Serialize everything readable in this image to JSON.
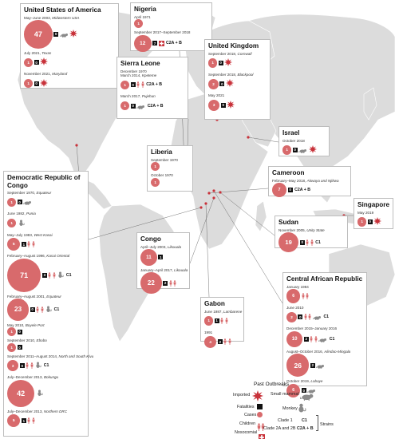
{
  "colors": {
    "case": "#d86a6c",
    "fatal": "#111111",
    "land": "#dcdcdc",
    "imported": "#c8323a",
    "nosocomial": "#c8323a"
  },
  "panels": {
    "usa": {
      "title": "United States of America",
      "entries": [
        {
          "period": "May–June 2003,",
          "location": "Midwestern USA",
          "cases": "47",
          "deaths": "0",
          "icons": [
            "mammal-icon",
            "imported-icon"
          ],
          "strain": ""
        },
        {
          "period": "July 2021,",
          "location": "Texas",
          "cases": "1",
          "deaths": "0",
          "icons": [
            "imported-icon"
          ],
          "strain": ""
        },
        {
          "period": "November 2021,",
          "location": "Maryland",
          "cases": "1",
          "deaths": "0",
          "icons": [
            "imported-icon"
          ],
          "strain": ""
        }
      ]
    },
    "nigeria": {
      "title": "Nigeria",
      "entries": [
        {
          "period": "April 1971",
          "location": "",
          "cases": "1",
          "deaths": "",
          "icons": [],
          "strain": ""
        },
        {
          "period": "September 2017–September 2018",
          "location": "",
          "cases": "12",
          "deaths": "7",
          "icons": [
            "nosocomial-icon"
          ],
          "strain": "C2A + B"
        }
      ]
    },
    "sierra_leone": {
      "title": "Sierra Leone",
      "entries": [
        {
          "period": "December 1970",
          "location": "",
          "cases": "",
          "deaths": "",
          "icons": [],
          "strain": ""
        },
        {
          "period": "March 2014,",
          "location": "Kpeteme",
          "cases": "1",
          "deaths": "0",
          "icons": [
            "child-icon",
            "child-icon"
          ],
          "strain": "C2A + B"
        },
        {
          "period": "March 2017,",
          "location": "Pujehun",
          "cases": "1",
          "deaths": "0",
          "icons": [
            "mammal-icon"
          ],
          "strain": "C2A + B"
        }
      ]
    },
    "uk": {
      "title": "United Kingdom",
      "entries": [
        {
          "period": "September 2018,",
          "location": "Cornwall",
          "cases": "1",
          "deaths": "0",
          "icons": [
            "imported-icon"
          ],
          "strain": ""
        },
        {
          "period": "September 2018,",
          "location": "Blackpool",
          "cases": "2",
          "deaths": "0",
          "icons": [
            "imported-icon"
          ],
          "strain": ""
        },
        {
          "period": "May 2021",
          "location": "",
          "cases": "3",
          "deaths": "0",
          "icons": [
            "imported-icon"
          ],
          "strain": ""
        }
      ]
    },
    "israel": {
      "title": "Israel",
      "entries": [
        {
          "period": "October 2018",
          "location": "",
          "cases": "1",
          "deaths": "0",
          "icons": [
            "mammal-icon",
            "imported-icon"
          ],
          "strain": ""
        }
      ]
    },
    "liberia": {
      "title": "Liberia",
      "entries": [
        {
          "period": "September 1970",
          "location": "",
          "cases": "1",
          "deaths": "",
          "icons": [],
          "strain": ""
        },
        {
          "period": "October 1970",
          "location": "",
          "cases": "1",
          "deaths": "",
          "icons": [],
          "strain": ""
        }
      ]
    },
    "cameroon": {
      "title": "Cameroon",
      "entries": [
        {
          "period": "February–May 2018,",
          "location": "Akwaya and Njikwa",
          "cases": "7",
          "deaths": "0",
          "icons": [],
          "strain": "C2A + B"
        }
      ]
    },
    "singapore": {
      "title": "Singapore",
      "entries": [
        {
          "period": "May 2019",
          "location": "",
          "cases": "1",
          "deaths": "0",
          "icons": [
            "imported-icon"
          ],
          "strain": ""
        }
      ]
    },
    "sudan": {
      "title": "Sudan",
      "entries": [
        {
          "period": "November 2005,",
          "location": "Unity State",
          "cases": "19",
          "deaths": "0",
          "icons": [
            "child-icon",
            "child-icon"
          ],
          "strain": "C1"
        }
      ]
    },
    "drc": {
      "title": "Democratic Republic of Congo",
      "entries": [
        {
          "period": "September 1970,",
          "location": "Equateur",
          "cases": "1",
          "deaths": "0",
          "icons": [
            "mammal-icon"
          ],
          "strain": ""
        },
        {
          "period": "June 1982,",
          "location": "Punia",
          "cases": "1",
          "deaths": "",
          "icons": [
            "monkey-icon"
          ],
          "strain": ""
        },
        {
          "period": "May–July 1983,",
          "location": "West Kasai",
          "cases": "5",
          "deaths": "1",
          "icons": [
            "child-icon",
            "child-icon"
          ],
          "strain": ""
        },
        {
          "period": "February–August 1996,",
          "location": "Kasai Oriental",
          "cases": "71",
          "deaths": "3",
          "icons": [
            "child-icon",
            "child-icon",
            "monkey-icon"
          ],
          "strain": "C1"
        },
        {
          "period": "February–August 2001,",
          "location": "Equateur",
          "cases": "23",
          "deaths": "0",
          "icons": [
            "child-icon",
            "child-icon",
            "monkey-icon"
          ],
          "strain": "C1"
        },
        {
          "period": "May 2010,",
          "location": "Boyele Port",
          "cases": "1",
          "deaths": "0",
          "icons": [],
          "strain": ""
        },
        {
          "period": "September 2010,",
          "location": "Ebobo",
          "cases": "1",
          "deaths": "0",
          "icons": [],
          "strain": ""
        },
        {
          "period": "September 2011–August 2014,",
          "location": "North and South Kivu",
          "cases": "3",
          "deaths": "0",
          "icons": [
            "child-icon",
            "child-icon",
            "monkey-icon"
          ],
          "strain": "C1"
        },
        {
          "period": "July–December 2013,",
          "location": "Bokungu",
          "cases": "42",
          "deaths": "",
          "icons": [
            "monkey-icon"
          ],
          "strain": ""
        },
        {
          "period": "July–December 2013,",
          "location": "Northern DRC",
          "cases": "5",
          "deaths": "1",
          "icons": [
            "child-icon",
            "child-icon"
          ],
          "strain": ""
        }
      ]
    },
    "congo": {
      "title": "Congo",
      "entries": [
        {
          "period": "April–July 2003,",
          "location": "Likouala",
          "cases": "11",
          "deaths": "1",
          "icons": [],
          "strain": ""
        },
        {
          "period": "January–April 2017,",
          "location": "Likouala",
          "cases": "22",
          "deaths": "2",
          "icons": [
            "child-icon",
            "child-icon"
          ],
          "strain": ""
        }
      ]
    },
    "gabon": {
      "title": "Gabon",
      "entries": [
        {
          "period": "June 1987,",
          "location": "Lambarene",
          "cases": "1",
          "deaths": "1",
          "icons": [
            "child-icon",
            "child-icon"
          ],
          "strain": ""
        },
        {
          "period": "1991",
          "location": "",
          "cases": "4",
          "deaths": "2",
          "icons": [
            "child-icon",
            "child-icon"
          ],
          "strain": ""
        }
      ]
    },
    "car": {
      "title": "Central African Republic",
      "entries": [
        {
          "period": "January 1984",
          "location": "",
          "cases": "6",
          "deaths": "",
          "icons": [
            "child-icon",
            "child-icon"
          ],
          "strain": ""
        },
        {
          "period": "June 2010",
          "location": "",
          "cases": "2",
          "deaths": "0",
          "icons": [
            "child-icon",
            "child-icon",
            "mammal-icon"
          ],
          "strain": "C1"
        },
        {
          "period": "December 2015–January 2016",
          "location": "",
          "cases": "10",
          "deaths": "2",
          "icons": [
            "child-icon",
            "child-icon",
            "mammal-icon"
          ],
          "strain": "C1"
        },
        {
          "period": "August–October 2016,",
          "location": "Alindao-Mingala",
          "cases": "26",
          "deaths": "2",
          "icons": [
            "mammal-icon"
          ],
          "strain": ""
        },
        {
          "period": "October 2019,",
          "location": "Lobaye",
          "cases": "6",
          "deaths": "0",
          "icons": [
            "mammal-icon"
          ],
          "strain": ""
        }
      ]
    }
  },
  "legend": {
    "title": "Past Outbreaks",
    "imported": "Imported",
    "small_mammal": "Small mammal",
    "fatalities": "Fatalities",
    "monkey": "Monkey",
    "cases": "Cases",
    "children": "Children",
    "nosocomial": "Nosocomial",
    "clade1": "Clade 1",
    "clade1_code": "C1",
    "clade2": "Clade 2A and 2B",
    "clade2_code": "C2A + B",
    "strains": "Strains"
  }
}
